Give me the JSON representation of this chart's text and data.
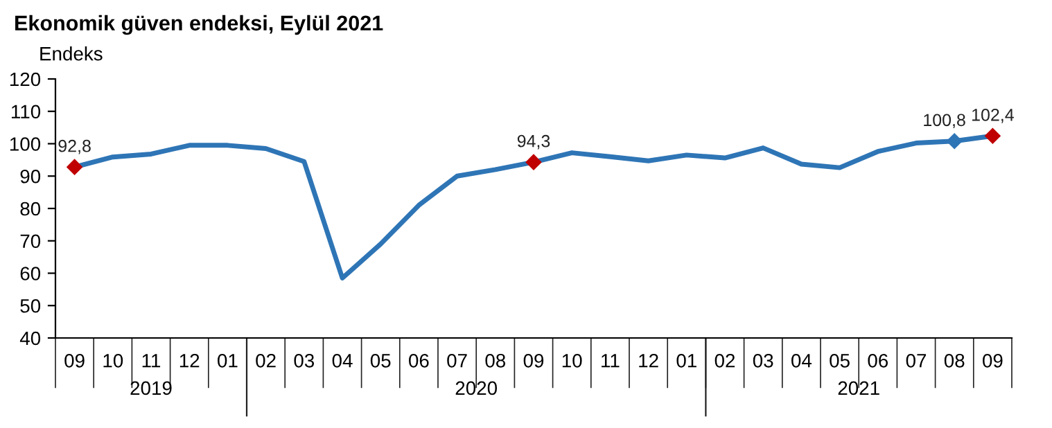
{
  "chart_data": {
    "type": "line",
    "title": "Ekonomik güven endeksi, Eylül 2021",
    "ylabel": "Endeks",
    "categories": [
      "09",
      "10",
      "11",
      "12",
      "01",
      "02",
      "03",
      "04",
      "05",
      "06",
      "07",
      "08",
      "09",
      "10",
      "11",
      "12",
      "01",
      "02",
      "03",
      "04",
      "05",
      "06",
      "07",
      "08",
      "09"
    ],
    "series": [
      {
        "color": "#2e75b6",
        "values": [
          92.8,
          95.9,
          96.8,
          99.5,
          99.5,
          98.5,
          94.5,
          58.5,
          69,
          81,
          90,
          92,
          94.3,
          97.2,
          96,
          94.7,
          96.5,
          95.6,
          98.7,
          93.7,
          92.6,
          97.6,
          100.2,
          100.8,
          102.4
        ],
        "value_labels": [
          "92,8",
          null,
          null,
          null,
          null,
          null,
          null,
          null,
          null,
          null,
          null,
          null,
          "94,3",
          null,
          null,
          null,
          null,
          null,
          null,
          null,
          null,
          null,
          null,
          "100,8",
          "102,4"
        ],
        "colors": [
          "#c00000",
          "#2e75b6",
          "#2e75b6",
          "#2e75b6",
          "#2e75b6",
          "#2e75b6",
          "#2e75b6",
          "#2e75b6",
          "#2e75b6",
          "#2e75b6",
          "#2e75b6",
          "#2e75b6",
          "#c00000",
          "#2e75b6",
          "#2e75b6",
          "#2e75b6",
          "#2e75b6",
          "#2e75b6",
          "#2e75b6",
          "#2e75b6",
          "#2e75b6",
          "#2e75b6",
          "#2e75b6",
          "#2e75b6",
          "#c00000"
        ]
      }
    ],
    "ylim": [
      40,
      120
    ],
    "yticks": [
      40,
      50,
      60,
      70,
      80,
      90,
      100,
      110,
      120
    ],
    "grid": false,
    "legend": false,
    "annotations": [
      "2019",
      "2020",
      "2021"
    ]
  }
}
